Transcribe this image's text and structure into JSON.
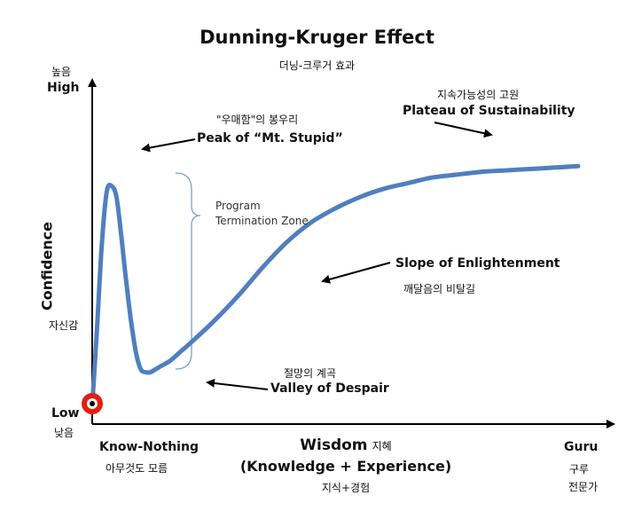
{
  "title": "Dunning-Kruger Effect",
  "subtitle": "더닝-크루거 효과",
  "colors": {
    "curve": "#4f7fbf",
    "axis": "#000000",
    "marker": "#e02010",
    "bracket": "#7f9fcf"
  },
  "y_axis": {
    "label": "Confidence",
    "label_ko": "자신감",
    "high_ko": "높음",
    "high": "High",
    "low": "Low",
    "low_ko": "낮음"
  },
  "x_axis": {
    "start": "Know-Nothing",
    "start_ko": "아무것도 모름",
    "label": "Wisdom",
    "label_ko": "지혜",
    "label_line2": "(Knowledge  + Experience)",
    "label_line2_ko": "지식+경험",
    "end": "Guru",
    "end_ko1": "구루",
    "end_ko2": "전문가"
  },
  "annotations": {
    "peak_ko": "\"우매함\"의 봉우리",
    "peak": "Peak of “Mt. Stupid”",
    "zone_line1": "Program",
    "zone_line2": "Termination Zone",
    "valley_ko": "절망의 계곡",
    "valley": "Valley of Despair",
    "slope": "Slope of Enlightenment",
    "slope_ko": "깨달음의 비탈길",
    "plateau_ko": "지속가능성의 고원",
    "plateau": "Plateau of Sustainability"
  },
  "chart_data": {
    "type": "line",
    "x_range": [
      0,
      100
    ],
    "y_range": [
      0,
      100
    ],
    "grid": false,
    "legend": "none",
    "series": [
      {
        "x": [
          0,
          1,
          2,
          3,
          4,
          5,
          6,
          7,
          8,
          9,
          10,
          11,
          12,
          14,
          16,
          18,
          20,
          25,
          30,
          35,
          40,
          45,
          50,
          55,
          60,
          65,
          70,
          75,
          80,
          85,
          90,
          95,
          100
        ],
        "y": [
          2,
          30,
          60,
          78,
          80,
          76,
          62,
          46,
          32,
          21,
          15,
          14,
          14,
          16,
          18,
          21,
          24,
          32,
          41,
          51,
          60,
          67,
          72,
          76,
          79,
          81,
          83,
          84,
          85,
          85.5,
          86,
          86.5,
          87
        ]
      }
    ]
  }
}
